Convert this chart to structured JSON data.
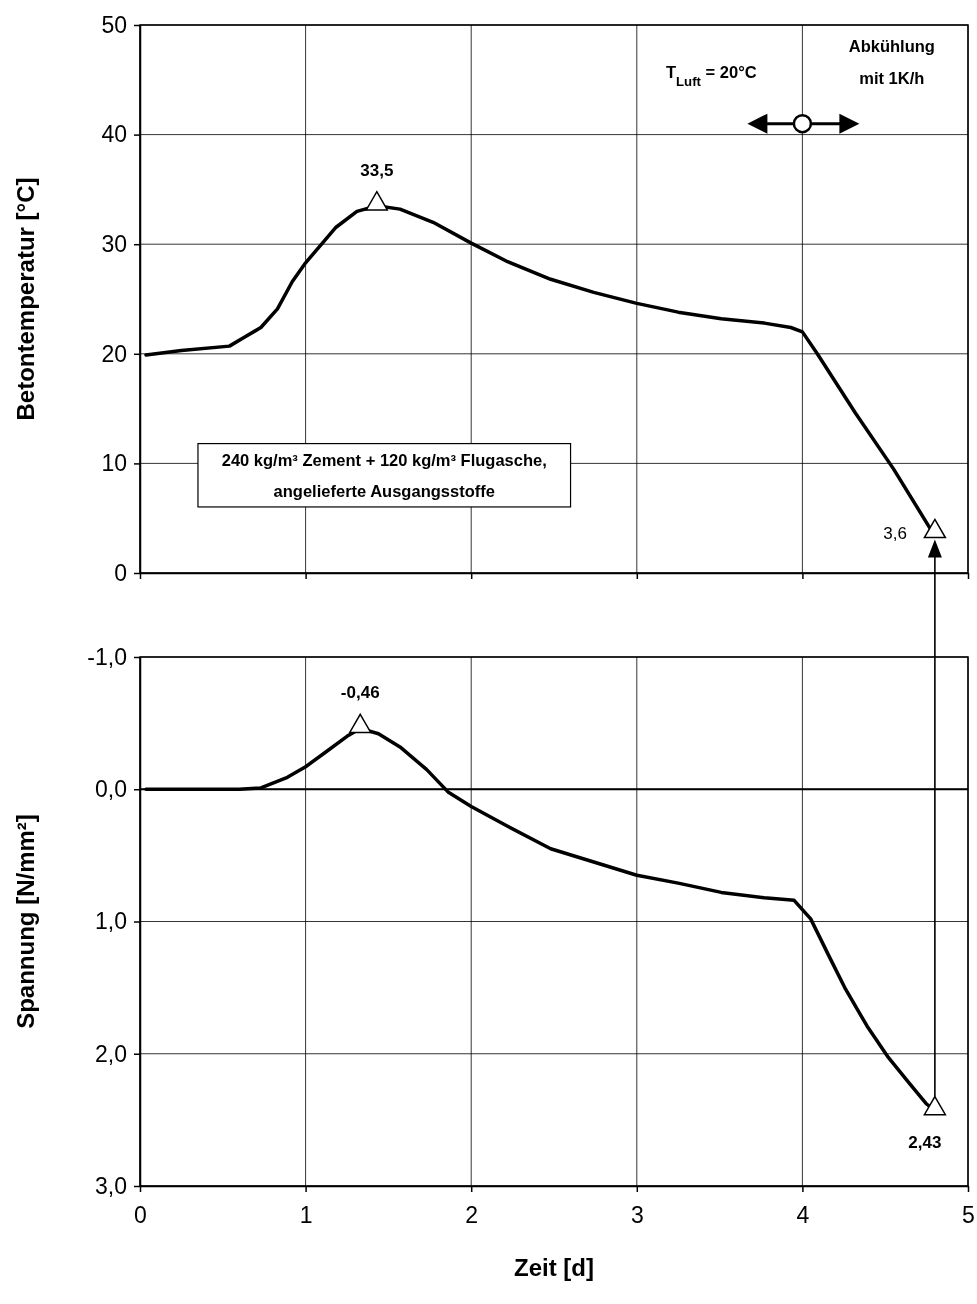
{
  "chart_data": [
    {
      "type": "line",
      "ylabel": "Betontemperatur [°C]",
      "xlim": [
        0,
        5
      ],
      "xticks": [
        0,
        1,
        2,
        3,
        4,
        5
      ],
      "ylim": [
        0,
        50
      ],
      "yticks": [
        0,
        10,
        20,
        30,
        40,
        50
      ],
      "grid": true,
      "tick_labels": "y",
      "annotations": [
        "240 kg/m³ Zement + 120 kg/m³ Flugasche,\nangelieferte Ausgangsstoffe",
        "T$_{Luft}$ = 20°C",
        "Abkühlung\nmit 1K/h"
      ],
      "series": [
        {
          "color": "#000000",
          "x": [
            0.036,
            0.25,
            0.54,
            0.63,
            0.73,
            0.83,
            0.92,
            1.0,
            1.09,
            1.18,
            1.31,
            1.43,
            1.57,
            1.77,
            2.0,
            2.22,
            2.48,
            2.74,
            3.0,
            3.25,
            3.51,
            3.77,
            3.93,
            4.0,
            4.09,
            4.32,
            4.55,
            4.77,
            4.8
          ],
          "values": [
            19.9,
            20.3,
            20.7,
            21.5,
            22.4,
            24.1,
            26.6,
            28.3,
            29.9,
            31.5,
            33.0,
            33.5,
            33.2,
            32.0,
            30.1,
            28.4,
            26.8,
            25.6,
            24.6,
            23.8,
            23.2,
            22.8,
            22.4,
            22.0,
            20.0,
            14.6,
            9.5,
            4.1,
            3.6
          ]
        },
        {
          "type": "scatter",
          "marker": "triangle",
          "color": "#000000",
          "x": [
            1.43,
            4.8
          ],
          "values": [
            33.5,
            3.6
          ],
          "value_labels": [
            "33,5",
            "3,6"
          ]
        }
      ]
    },
    {
      "type": "line",
      "xlabel": "Zeit [d]",
      "ylabel": "Spannung [N/mm²]",
      "xlim": [
        0,
        5
      ],
      "xticks": [
        0,
        1,
        2,
        3,
        4,
        5
      ],
      "ylim": [
        3.0,
        -1.0
      ],
      "yticks": [
        {
          "value": -1,
          "label": "-1,0"
        },
        {
          "value": 0,
          "label": "0,0"
        },
        {
          "value": 1,
          "label": "1,0"
        },
        {
          "value": 2,
          "label": "2,0"
        },
        {
          "value": 3,
          "label": "3,0"
        }
      ],
      "grid": true,
      "ref_lines": [
        {
          "axis": "y",
          "value": 0,
          "color": "#000000"
        }
      ],
      "series": [
        {
          "color": "#000000",
          "x": [
            0.036,
            0.6,
            0.73,
            0.89,
            1.0,
            1.12,
            1.25,
            1.33,
            1.44,
            1.57,
            1.73,
            1.86,
            2.0,
            2.22,
            2.48,
            2.74,
            3.0,
            3.25,
            3.51,
            3.77,
            3.95,
            4.05,
            4.16,
            4.26,
            4.39,
            4.52,
            4.65,
            4.75,
            4.8
          ],
          "values": [
            0.0,
            0.0,
            -0.01,
            -0.09,
            -0.17,
            -0.28,
            -0.4,
            -0.46,
            -0.42,
            -0.32,
            -0.15,
            0.02,
            0.13,
            0.28,
            0.45,
            0.55,
            0.65,
            0.71,
            0.78,
            0.82,
            0.84,
            0.98,
            1.26,
            1.51,
            1.79,
            2.03,
            2.23,
            2.38,
            2.43
          ]
        },
        {
          "type": "scatter",
          "marker": "triangle",
          "color": "#000000",
          "x": [
            1.33,
            4.8
          ],
          "values": [
            -0.46,
            2.43
          ],
          "value_labels": [
            "-0,46",
            "2,43"
          ]
        }
      ]
    }
  ]
}
